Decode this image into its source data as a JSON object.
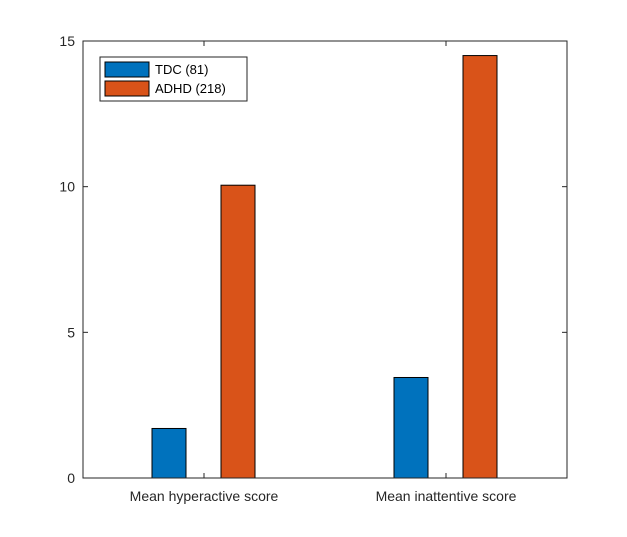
{
  "chart_data": {
    "type": "bar",
    "title": "",
    "xlabel": "",
    "ylabel": "",
    "categories": [
      "Mean hyperactive score",
      "Mean inattentive score"
    ],
    "series": [
      {
        "name": "TDC (81)",
        "values": [
          1.7,
          3.45
        ],
        "color": "#0072BD"
      },
      {
        "name": "ADHD (218)",
        "values": [
          10.05,
          14.5
        ],
        "color": "#D95319"
      }
    ],
    "ylim": [
      0,
      15
    ],
    "yticks": [
      0,
      5,
      10,
      15
    ],
    "ytick_labels": [
      "0",
      "5",
      "10",
      "15"
    ],
    "grid": false,
    "legend_position": "top-left",
    "box": true
  }
}
